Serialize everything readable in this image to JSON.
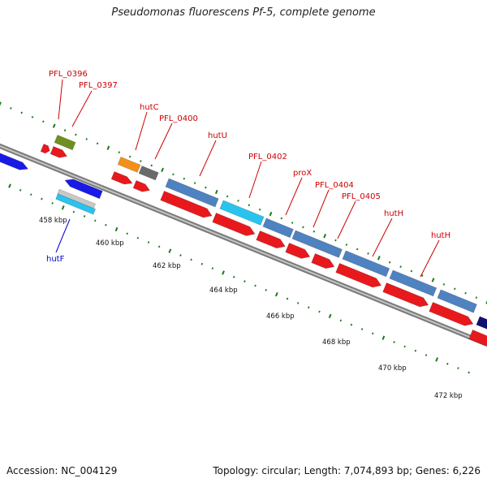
{
  "title": "Pseudomonas fluorescens Pf-5, complete genome",
  "footer": {
    "accession": "Accession: NC_004129",
    "info": "Topology: circular; Length: 7,074,893 bp; Genes: 6,226"
  },
  "colors": {
    "backbone": "#8a8a8a",
    "cds_forward": "#e8191d",
    "steel_blue": "#4f82c0",
    "light_blue": "#29c3ee",
    "dark_blue": "#1a1ae6",
    "orange": "#f39019",
    "gray": "#6a6a6a",
    "olive": "#6f8f22",
    "light_gray": "#c8c8c8",
    "navy": "#101070",
    "tick_green": "#1a7a1a",
    "label_red": "#cc0000",
    "label_blue": "#0000cc"
  },
  "scale": {
    "ticks": [
      "458 kbp",
      "460 kbp",
      "462 kbp",
      "464 kbp",
      "466 kbp",
      "468 kbp",
      "470 kbp",
      "472 kbp"
    ]
  },
  "gene_labels": [
    {
      "text": "PFL_0396",
      "color": "red"
    },
    {
      "text": "PFL_0397",
      "color": "red"
    },
    {
      "text": "hutC",
      "color": "red"
    },
    {
      "text": "PFL_0400",
      "color": "red"
    },
    {
      "text": "hutU",
      "color": "red"
    },
    {
      "text": "PFL_0402",
      "color": "red"
    },
    {
      "text": "proX",
      "color": "red"
    },
    {
      "text": "PFL_0404",
      "color": "red"
    },
    {
      "text": "PFL_0405",
      "color": "red"
    },
    {
      "text": "hutH",
      "color": "red"
    },
    {
      "text": "hutH",
      "color": "red"
    },
    {
      "text": "hutF",
      "color": "blue"
    }
  ]
}
